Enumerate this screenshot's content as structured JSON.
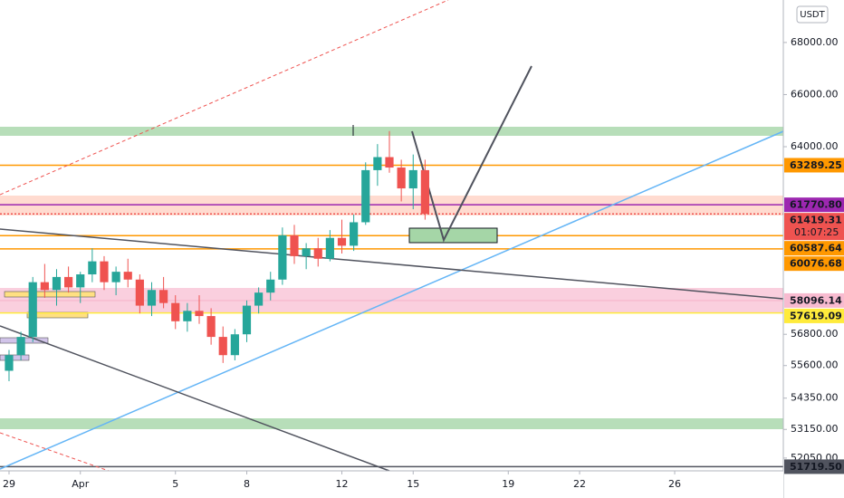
{
  "chart_data": {
    "type": "candlestick",
    "currency": "USDT",
    "xlim": [
      -0.38,
      32.57
    ],
    "ylim": [
      51560,
      69630
    ],
    "xticks": [
      {
        "value": 0,
        "label": "29"
      },
      {
        "value": 3,
        "label": "Apr"
      },
      {
        "value": 7,
        "label": "5"
      },
      {
        "value": 10,
        "label": "8"
      },
      {
        "value": 14,
        "label": "12"
      },
      {
        "value": 17,
        "label": "15"
      },
      {
        "value": 21,
        "label": "19"
      },
      {
        "value": 24,
        "label": "22"
      },
      {
        "value": 28,
        "label": "26"
      }
    ],
    "yticks": [
      {
        "value": 68000,
        "label": "68000.00"
      },
      {
        "value": 66000,
        "label": "66000.00"
      },
      {
        "value": 64000,
        "label": "64000.00"
      },
      {
        "value": 56800,
        "label": "56800.00"
      },
      {
        "value": 55600,
        "label": "55600.00"
      },
      {
        "value": 54350,
        "label": "54350.00"
      },
      {
        "value": 53150,
        "label": "53150.00"
      },
      {
        "value": 52050,
        "label": "52050.00"
      }
    ],
    "up_color": "#26a69a",
    "down_color": "#ef5350",
    "t": [
      0,
      0.5,
      1,
      1.5,
      2,
      2.5,
      3,
      3.5,
      4,
      4.5,
      5,
      5.5,
      6,
      6.5,
      7,
      7.5,
      8,
      8.5,
      9,
      9.5,
      10,
      10.5,
      11,
      11.5,
      12,
      12.5,
      13,
      13.5,
      14,
      14.5,
      15,
      15.5,
      16,
      16.5,
      17,
      17.5
    ],
    "open": [
      55400,
      56000,
      56700,
      58800,
      58500,
      59000,
      58600,
      59100,
      59600,
      58800,
      59200,
      58900,
      57900,
      58500,
      58000,
      57300,
      57700,
      57500,
      56700,
      56000,
      56800,
      57900,
      58400,
      58900,
      60600,
      59800,
      60100,
      59700,
      60500,
      60200,
      61100,
      63100,
      63600,
      63200,
      62400,
      63100
    ],
    "high": [
      56200,
      56900,
      59000,
      59500,
      59300,
      59400,
      59200,
      60100,
      59800,
      59400,
      59700,
      59100,
      58800,
      59000,
      58300,
      58000,
      58300,
      57800,
      57100,
      57000,
      58100,
      58600,
      59200,
      60900,
      61000,
      60300,
      60500,
      60800,
      61200,
      61400,
      63400,
      64100,
      64600,
      63500,
      63700,
      63500
    ],
    "low": [
      55000,
      55800,
      56500,
      58200,
      57900,
      58400,
      58000,
      58800,
      58500,
      58300,
      58600,
      57600,
      57500,
      57800,
      57000,
      56900,
      57200,
      56400,
      55700,
      55800,
      56500,
      57600,
      58100,
      58700,
      59500,
      59300,
      59400,
      59600,
      59900,
      60000,
      61000,
      62500,
      63000,
      61900,
      61600,
      61200
    ],
    "close": [
      56000,
      56700,
      58800,
      58500,
      59000,
      58600,
      59100,
      59600,
      58800,
      59200,
      58900,
      57900,
      58500,
      58000,
      57300,
      57700,
      57500,
      56700,
      56000,
      56800,
      57900,
      58400,
      58900,
      60600,
      59800,
      60100,
      59700,
      60500,
      60200,
      61100,
      63100,
      63600,
      63200,
      62400,
      63100,
      61419.31
    ],
    "price_tags": [
      {
        "value": 63289.25,
        "label": "63289.25",
        "color": "#ff9800",
        "text_color": "#131722"
      },
      {
        "value": 61770.8,
        "label": "61770.80",
        "color": "#9c27b0",
        "text_color": "#ffffff"
      },
      {
        "value": 61419.31,
        "label": "61419.31",
        "color": "#ef5350",
        "text_color": "#ffffff",
        "countdown": "01:07:25"
      },
      {
        "value": 60587.64,
        "label": "60587.64",
        "color": "#ff9800",
        "text_color": "#131722"
      },
      {
        "value": 60076.68,
        "label": "60076.68",
        "color": "#ff9800",
        "text_color": "#131722"
      },
      {
        "value": 58096.14,
        "label": "58096.14",
        "color": "#f8bbd0",
        "text_color": "#131722"
      },
      {
        "value": 57619.09,
        "label": "57619.09",
        "color": "#ffeb3b",
        "text_color": "#131722"
      },
      {
        "value": 51719.5,
        "label": "51719.50",
        "color": "#50535e",
        "text_color": "#ffffff"
      }
    ]
  }
}
